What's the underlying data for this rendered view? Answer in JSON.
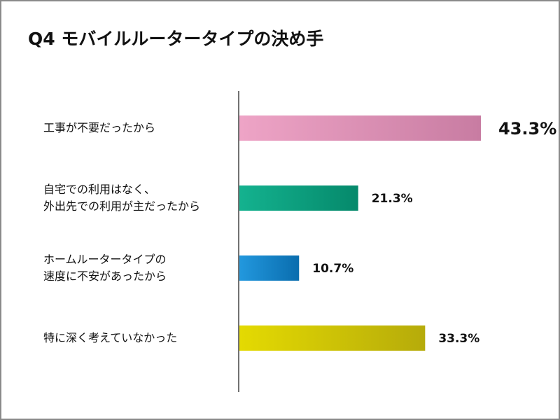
{
  "chart_data": {
    "type": "bar",
    "orientation": "horizontal",
    "title": "Q4  モバイルルータータイプの決め手",
    "categories": [
      "工事が不要だったから",
      "自宅での利用はなく、\n外出先での利用が主だったから",
      "ホームルータータイプの\n速度に不安があったから",
      "特に深く考えていなかった"
    ],
    "values": [
      43.3,
      21.3,
      10.7,
      33.3
    ],
    "value_labels": [
      "43.3%",
      "21.3%",
      "10.7%",
      "33.3%"
    ],
    "unit": "%",
    "colors": [
      [
        "#eea4c6",
        "#c87ca2"
      ],
      [
        "#14b28f",
        "#05896b"
      ],
      [
        "#2298de",
        "#0a6dae"
      ],
      [
        "#e4da02",
        "#b6ab0a"
      ]
    ],
    "grid": false,
    "legend": "none"
  }
}
